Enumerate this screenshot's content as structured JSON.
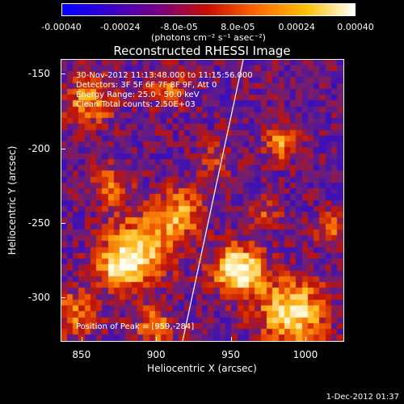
{
  "colorbar": {
    "tick_labels": [
      "-0.00040",
      "-0.00024",
      "-8.0e-05",
      "8.0e-05",
      "0.00024",
      "0.00040"
    ],
    "tick_values": [
      -0.0004,
      -0.00024,
      -8e-05,
      8e-05,
      0.00024,
      0.0004
    ],
    "range": [
      -0.0004,
      0.0004
    ],
    "units_label": "(photons cm⁻² s⁻¹ asec⁻²)",
    "colors": [
      "#0000ff",
      "#3a00c8",
      "#7a0080",
      "#c81000",
      "#ff6a00",
      "#ffc000",
      "#ffffff"
    ]
  },
  "title": "Reconstructed RHESSI Image",
  "annotations": [
    "30-Nov-2012 11:13:48.000 to 11:15:56.000",
    "Detectors: 3F 5F 6F 7F 8F 9F, Att 0",
    "Energy Range: 25.0 - 50.0 keV",
    "Clean    Total counts: 2.50E+03"
  ],
  "peak_label": "Position of Peak = [959,-284]",
  "axes": {
    "xlabel": "Heliocentric X (arcsec)",
    "ylabel": "Heliocentric Y (arcsec)",
    "x_range": [
      836,
      1026
    ],
    "y_range": [
      -330,
      -140
    ],
    "x_ticks": [
      850,
      900,
      950,
      1000
    ],
    "x_tick_labels": [
      "850",
      "900",
      "950",
      "1000"
    ],
    "y_ticks": [
      -150,
      -200,
      -250,
      -300
    ],
    "y_tick_labels": [
      "-150",
      "-200",
      "-250",
      "-300"
    ]
  },
  "datestamp": "1-Dec-2012 01:37"
}
